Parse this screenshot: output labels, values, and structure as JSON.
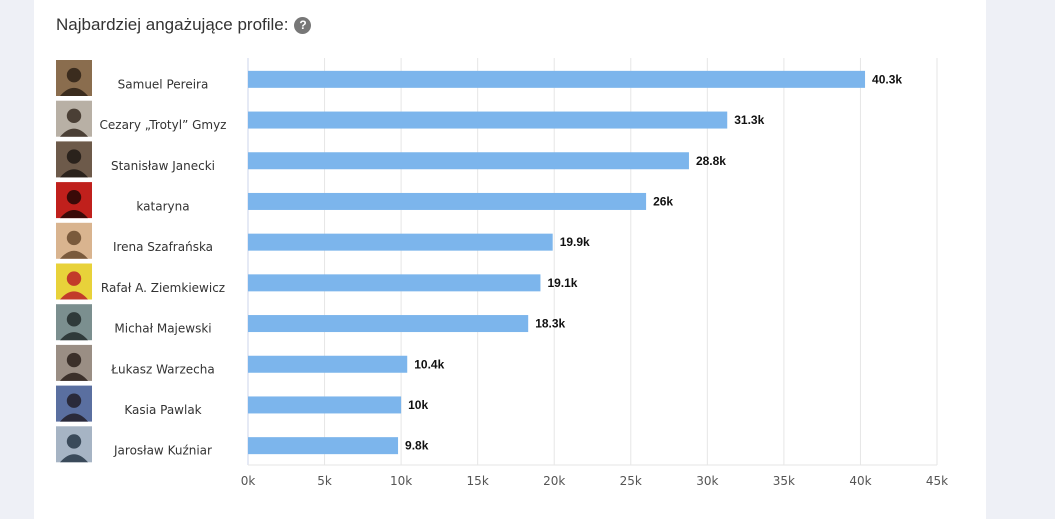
{
  "header": {
    "title": "Najbardziej angażujące profile:",
    "help_icon": "?"
  },
  "colors": {
    "bar": "#7cb5ec",
    "grid": "#e6e6e6",
    "axis": "#ccd6eb"
  },
  "chart_data": {
    "type": "bar",
    "orientation": "horizontal",
    "title": "Najbardziej angażujące profile:",
    "categories": [
      "Samuel Pereira",
      "Cezary „Trotyl” Gmyz",
      "Stanisław Janecki",
      "kataryna",
      "Irena Szafrańska",
      "Rafał A. Ziemkiewicz",
      "Michał Majewski",
      "Łukasz Warzecha",
      "Kasia Pawlak",
      "Jarosław Kuźniar"
    ],
    "values": [
      40300,
      31300,
      28800,
      26000,
      19900,
      19100,
      18300,
      10400,
      10000,
      9800
    ],
    "value_labels": [
      "40.3k",
      "31.3k",
      "28.8k",
      "26k",
      "19.9k",
      "19.1k",
      "18.3k",
      "10.4k",
      "10k",
      "9.8k"
    ],
    "xlim": [
      0,
      45000
    ],
    "x_ticks": [
      0,
      5000,
      10000,
      15000,
      20000,
      25000,
      30000,
      35000,
      40000,
      45000
    ],
    "x_tick_labels": [
      "0k",
      "5k",
      "10k",
      "15k",
      "20k",
      "25k",
      "30k",
      "35k",
      "40k",
      "45k"
    ],
    "xlabel": "",
    "ylabel": "",
    "grid": true,
    "legend": "none"
  }
}
